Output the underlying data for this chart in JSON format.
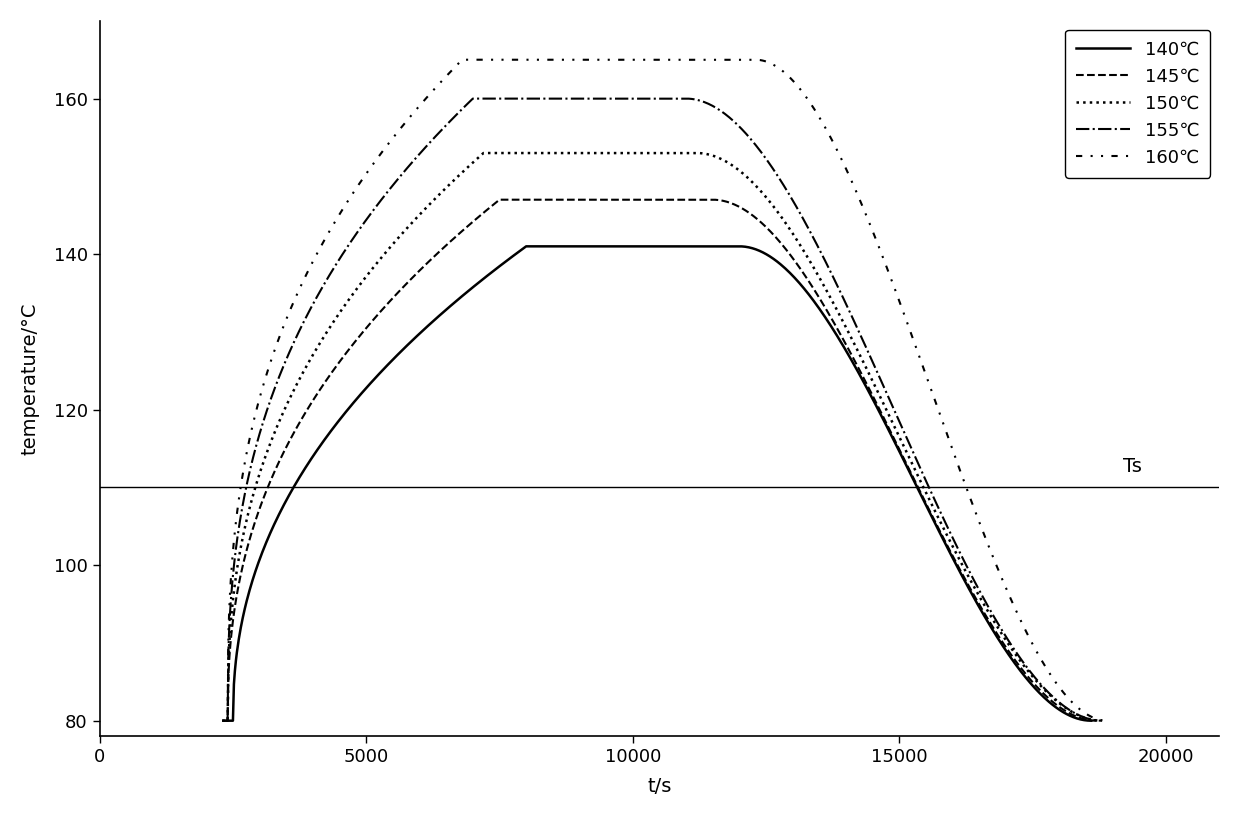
{
  "title": "",
  "xlabel": "t/s",
  "ylabel": "temperature/°C",
  "xlim": [
    0,
    21000
  ],
  "ylim": [
    78,
    170
  ],
  "yticks": [
    80,
    100,
    120,
    140,
    160
  ],
  "xticks": [
    0,
    5000,
    10000,
    15000,
    20000
  ],
  "xticklabels": [
    "0",
    "5000",
    "10000",
    "15000",
    "20000"
  ],
  "Ts_level": 110,
  "Ts_label": "Ts",
  "background_color": "#ffffff",
  "line_color": "#000000",
  "series": [
    {
      "label": "140℃",
      "linestyle": "solid",
      "linewidth": 1.8,
      "peak_temp": 141,
      "rise_start_t": 2500,
      "plateau_start_t": 8000,
      "peak_t": 12000,
      "fall_end_t": 18600,
      "base_temp": 80,
      "rise_shape": 0.45
    },
    {
      "label": "145℃",
      "linestyle": "dashed",
      "linewidth": 1.5,
      "peak_temp": 147,
      "rise_start_t": 2400,
      "plateau_start_t": 7500,
      "peak_t": 11500,
      "fall_end_t": 18700,
      "base_temp": 80,
      "rise_shape": 0.42
    },
    {
      "label": "150℃",
      "linestyle": "dotted",
      "linewidth": 1.8,
      "peak_temp": 153,
      "rise_start_t": 2400,
      "plateau_start_t": 7200,
      "peak_t": 11200,
      "fall_end_t": 18800,
      "base_temp": 80,
      "rise_shape": 0.4
    },
    {
      "label": "155℃",
      "linestyle": "dashdot",
      "linewidth": 1.5,
      "peak_temp": 160,
      "rise_start_t": 2400,
      "plateau_start_t": 7000,
      "peak_t": 11000,
      "fall_end_t": 18800,
      "base_temp": 80,
      "rise_shape": 0.38
    },
    {
      "label": "160℃",
      "linestyle": "dashdotdotted",
      "linewidth": 1.5,
      "peak_temp": 165,
      "rise_start_t": 2400,
      "plateau_start_t": 6800,
      "peak_t": 12300,
      "fall_end_t": 18900,
      "base_temp": 80,
      "rise_shape": 0.36
    }
  ]
}
